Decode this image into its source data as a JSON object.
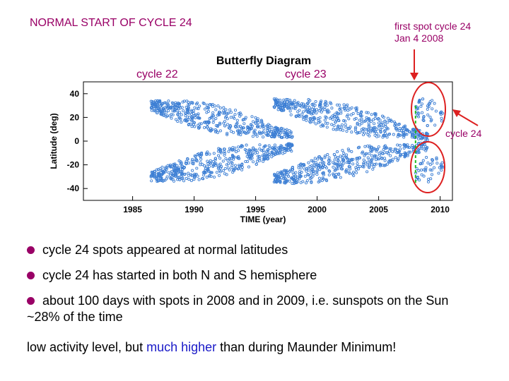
{
  "slide": {
    "title": "NORMAL START OF CYCLE 24",
    "first_spot_line1": "first spot cycle 24",
    "first_spot_line2": "Jan 4 2008",
    "label_cycle22": "cycle 22",
    "label_cycle23": "cycle 23",
    "label_cycle24": "cycle 24"
  },
  "chart_data": {
    "type": "scatter",
    "title": "Butterfly Diagram",
    "xlabel": "TIME (year)",
    "ylabel": "Latitude (deg)",
    "xlim": [
      1981,
      2011
    ],
    "ylim": [
      -50,
      50
    ],
    "x_ticks": [
      "1985",
      "1990",
      "1995",
      "2000",
      "2005",
      "2010"
    ],
    "y_ticks": [
      "40",
      "20",
      "0",
      "-20",
      "-40"
    ],
    "marker_color": "#3d7fd4",
    "series": [
      {
        "cycle": "22",
        "x_range": [
          1986.5,
          1998
        ],
        "lat_start": 30,
        "lat_end": 5
      },
      {
        "cycle": "23",
        "x_range": [
          1996.5,
          2009
        ],
        "lat_start": 32,
        "lat_end": 4
      },
      {
        "cycle": "24",
        "x_range": [
          2008,
          2010.3
        ],
        "lat_start": 28,
        "lat_end": 20
      }
    ],
    "marker_first_spot_year": 2008.0,
    "highlight_color": "#dd2020",
    "accent_line_color": "#22bb22"
  },
  "bullets": {
    "b1": "cycle 24 spots appeared at normal latitudes",
    "b2": "cycle 24 has started in both N and S hemisphere",
    "b3": "about 100 days with spots in 2008 and in 2009, i.e. sunspots on the Sun ~28% of the time"
  },
  "final": {
    "part1": "low activity level, but ",
    "highlight": "much higher",
    "part2": " than during Maunder Minimum!"
  }
}
